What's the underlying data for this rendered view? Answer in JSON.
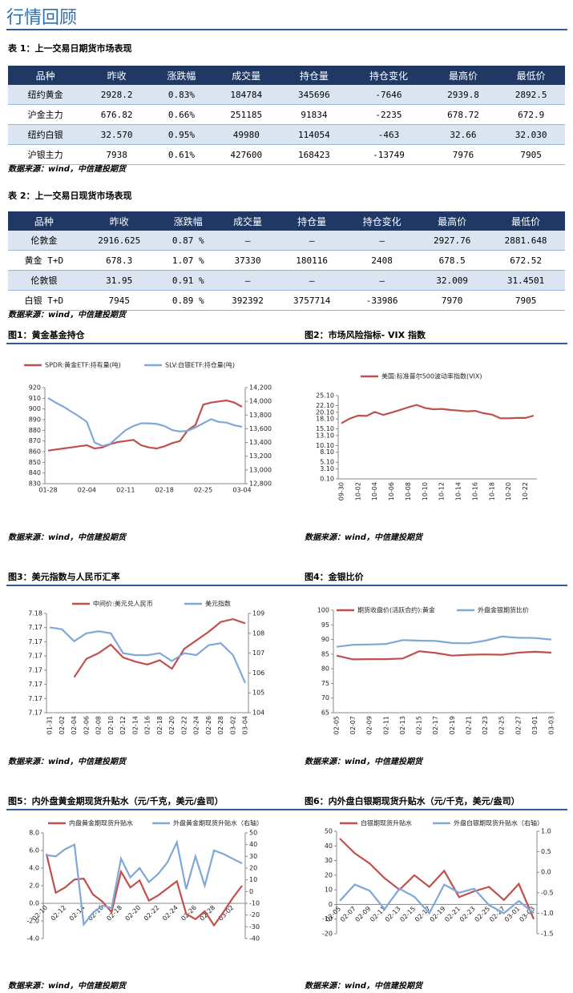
{
  "header": {
    "title": "行情回顾"
  },
  "tables": [
    {
      "caption": "表 1：上一交易日期货市场表现",
      "columns": [
        "品种",
        "昨收",
        "涨跌幅",
        "成交量",
        "持仓量",
        "持仓变化",
        "最高价",
        "最低价"
      ],
      "rows": [
        [
          "纽约黄金",
          "2928.2",
          "0.83%",
          "184784",
          "345696",
          "-7646",
          "2939.8",
          "2892.5"
        ],
        [
          "沪金主力",
          "676.82",
          "0.66%",
          "251185",
          "91834",
          "-2235",
          "678.72",
          "672.9"
        ],
        [
          "纽约白银",
          "32.570",
          "0.95%",
          "49980",
          "114054",
          "-463",
          "32.66",
          "32.030"
        ],
        [
          "沪银主力",
          "7938",
          "0.61%",
          "427600",
          "168423",
          "-13749",
          "7976",
          "7905"
        ]
      ],
      "source": "数据来源：wind，中信建投期货"
    },
    {
      "caption": "表 2：上一交易日现货市场表现",
      "columns": [
        "品种",
        "昨收",
        "涨跌幅",
        "成交量",
        "持仓量",
        "持仓变化",
        "最高价",
        "最低价"
      ],
      "rows": [
        [
          "伦敦金",
          "2916.625",
          "0.87 %",
          "–",
          "–",
          "–",
          "2927.76",
          "2881.648"
        ],
        [
          "黄金 T+D",
          "678.3",
          "1.07 %",
          "37330",
          "180116",
          "2408",
          "678.5",
          "672.52"
        ],
        [
          "伦敦银",
          "31.95",
          "0.91 %",
          "–",
          "–",
          "–",
          "32.009",
          "31.4501"
        ],
        [
          "白银 T+D",
          "7945",
          "0.89 %",
          "392392",
          "3757714",
          "-33986",
          "7970",
          "7905"
        ]
      ],
      "source": "数据来源：wind，中信建投期货"
    }
  ],
  "chart_data": [
    {
      "type": "line",
      "title": "图1：黄金基金持仓",
      "source": "数据来源：wind，中信建投期货",
      "categories": [
        "01-28",
        null,
        null,
        null,
        null,
        "02-04",
        null,
        null,
        null,
        null,
        "02-11",
        null,
        null,
        null,
        null,
        "02-18",
        null,
        null,
        null,
        null,
        "02-25",
        null,
        null,
        null,
        null,
        "03-04"
      ],
      "series": [
        {
          "name": "SPDR:黄金ETF:持有量(吨)",
          "color": "#c0504d",
          "values": [
            861,
            862,
            863,
            864,
            865,
            866,
            863,
            864,
            867,
            869,
            870,
            871,
            866,
            864,
            863,
            865,
            868,
            870,
            880,
            885,
            904,
            906,
            907,
            908,
            906,
            902
          ]
        },
        {
          "name": "SLV:白银ETF:持仓量(吨)",
          "color": "#7fa7d8",
          "axis": "y2",
          "values": [
            14050,
            13980,
            13920,
            13850,
            13780,
            13700,
            13400,
            13350,
            13380,
            13480,
            13580,
            13640,
            13680,
            13680,
            13670,
            13640,
            13580,
            13560,
            13570,
            13620,
            13680,
            13740,
            13700,
            13690,
            13650,
            13630
          ]
        }
      ],
      "ylim": [
        830,
        920
      ],
      "yticks": [
        830,
        840,
        850,
        860,
        870,
        880,
        890,
        900,
        910,
        920
      ],
      "y2lim": [
        12800,
        14200
      ],
      "y2ticks": [
        {
          "value": 12800,
          "label": "12,800"
        },
        {
          "value": 13000,
          "label": "13,000"
        },
        {
          "value": 13200,
          "label": "13,200"
        },
        {
          "value": 13400,
          "label": "13,400"
        },
        {
          "value": 13600,
          "label": "13,600"
        },
        {
          "value": 13800,
          "label": "13,800"
        },
        {
          "value": 14000,
          "label": "14,000"
        },
        {
          "value": 14200,
          "label": "14,200"
        }
      ]
    },
    {
      "type": "line",
      "title": "图2：市场风险指标- VIX 指数",
      "source": "数据来源：wind，中信建投期货",
      "categories": [
        "09-30",
        null,
        "10-02",
        null,
        "10-04",
        null,
        "10-06",
        null,
        "10-08",
        null,
        "10-10",
        null,
        "10-12",
        null,
        "10-14",
        null,
        "10-16",
        null,
        "10-18",
        null,
        "10-20",
        null,
        "10-22",
        null
      ],
      "series": [
        {
          "name": "美国:标准普尔500波动率指数(VIX)",
          "color": "#c0504d",
          "values": [
            16.8,
            18.2,
            19.1,
            19.0,
            20.2,
            19.3,
            20.0,
            20.8,
            21.6,
            22.3,
            21.4,
            21.0,
            21.1,
            20.8,
            20.6,
            20.4,
            20.5,
            19.8,
            19.4,
            18.3,
            18.3,
            18.4,
            18.4,
            19.1
          ]
        }
      ],
      "ylim": [
        0.1,
        25.1
      ],
      "yticks": [
        {
          "value": 0.1,
          "label": "0.10"
        },
        {
          "value": 3.1,
          "label": "3.10"
        },
        {
          "value": 5.1,
          "label": "5.10"
        },
        {
          "value": 8.1,
          "label": "8.10"
        },
        {
          "value": 10.1,
          "label": "10.10"
        },
        {
          "value": 13.1,
          "label": "13.10"
        },
        {
          "value": 15.1,
          "label": "15.10"
        },
        {
          "value": 18.1,
          "label": "18.10"
        },
        {
          "value": 20.1,
          "label": "20.10"
        },
        {
          "value": 22.1,
          "label": "22.10"
        },
        {
          "value": 25.1,
          "label": "25.10"
        }
      ]
    },
    {
      "type": "line",
      "title": "图3：美元指数与人民币汇率",
      "source": "数据来源：wind，中信建投期货",
      "categories": [
        "01-31",
        "02-02",
        "02-04",
        "02-06",
        "02-08",
        "02-10",
        "02-12",
        "02-14",
        "02-16",
        "02-18",
        "02-20",
        "02-22",
        "02-24",
        "02-26",
        "02-28",
        "03-02",
        "03-04"
      ],
      "series": [
        {
          "name": "中间价:美元兑人民币",
          "color": "#c0504d",
          "values": [
            null,
            null,
            7.1705,
            7.1718,
            7.1722,
            7.1728,
            7.1719,
            7.1716,
            7.1714,
            7.1717,
            7.1711,
            7.1725,
            7.1731,
            7.1737,
            7.1744,
            7.1746,
            7.1743
          ]
        },
        {
          "name": "美元指数",
          "color": "#7fa7d8",
          "axis": "y2",
          "values": [
            108.3,
            108.2,
            107.6,
            108.0,
            108.1,
            108.0,
            107.0,
            106.9,
            106.9,
            107.0,
            106.6,
            107.0,
            106.9,
            107.4,
            107.5,
            106.9,
            105.5
          ]
        }
      ],
      "ylim": [
        7.168,
        7.175
      ],
      "yticks": [
        {
          "value": 7.168,
          "label": "7.17"
        },
        {
          "value": 7.169,
          "label": "7.17"
        },
        {
          "value": 7.17,
          "label": "7.17"
        },
        {
          "value": 7.171,
          "label": "7.17"
        },
        {
          "value": 7.172,
          "label": "7.17"
        },
        {
          "value": 7.173,
          "label": "7.17"
        },
        {
          "value": 7.174,
          "label": "7.17"
        },
        {
          "value": 7.175,
          "label": "7.18"
        }
      ],
      "y2lim": [
        104,
        109
      ],
      "y2ticks": [
        104,
        105,
        106,
        107,
        108,
        109
      ]
    },
    {
      "type": "line",
      "title": "图4：金银比价",
      "source": "数据来源：wind，中信建投期货",
      "categories": [
        "02-05",
        "02-07",
        "02-09",
        "02-11",
        "02-13",
        "02-15",
        "02-17",
        "02-19",
        "02-21",
        "02-23",
        "02-25",
        "02-27",
        "03-01",
        "03-03"
      ],
      "series": [
        {
          "name": "期货收盘价(活跃合约):黄金",
          "color": "#c0504d",
          "values": [
            84.5,
            83.2,
            83.3,
            83.3,
            83.5,
            86.0,
            85.4,
            84.5,
            84.8,
            84.9,
            84.8,
            85.5,
            85.8,
            85.5
          ]
        },
        {
          "name": "外盘金银期货比价",
          "color": "#7fa7d8",
          "values": [
            87.5,
            88.2,
            88.3,
            88.5,
            89.8,
            89.6,
            89.5,
            88.8,
            88.7,
            89.6,
            91.0,
            90.6,
            90.5,
            90.0
          ]
        }
      ],
      "ylim": [
        65,
        100
      ],
      "yticks": [
        65,
        70,
        75,
        80,
        85,
        90,
        95,
        100
      ]
    },
    {
      "type": "line",
      "title": "图5：内外盘黄金期现货升贴水（元/千克，美元/盎司）",
      "source": "数据来源：wind，中信建投期货",
      "categories": [
        "02-10",
        null,
        "02-12",
        null,
        "02-14",
        null,
        "02-16",
        null,
        "02-18",
        null,
        "02-20",
        null,
        "02-22",
        null,
        "02-24",
        null,
        "02-26",
        null,
        "02-28",
        null,
        "03-02",
        null
      ],
      "series": [
        {
          "name": "内盘黄金期现货升贴水",
          "color": "#c0504d",
          "values": [
            5.6,
            1.2,
            1.8,
            2.7,
            2.8,
            1.0,
            0.2,
            -1.0,
            3.6,
            1.8,
            2.6,
            0.3,
            0.9,
            1.7,
            2.5,
            -1.2,
            -1.8,
            -0.9,
            -2.5,
            -1.0,
            0.6,
            2.0
          ]
        },
        {
          "name": "外盘黄金期现货升贴水（右轴）",
          "color": "#7fa7d8",
          "axis": "y2",
          "values": [
            31,
            30,
            36,
            40,
            -28,
            -18,
            -12,
            -14,
            28,
            12,
            20,
            8,
            15,
            25,
            42,
            2,
            30,
            5,
            35,
            32,
            28,
            24
          ]
        }
      ],
      "ylim": [
        -4,
        8
      ],
      "yticks": [
        {
          "value": -4,
          "label": "-4.0"
        },
        {
          "value": -2,
          "label": "-2.0"
        },
        {
          "value": 0,
          "label": "0.0"
        },
        {
          "value": 2,
          "label": "2.0"
        },
        {
          "value": 4,
          "label": "4.0"
        },
        {
          "value": 6,
          "label": "6.0"
        },
        {
          "value": 8,
          "label": "8.0"
        }
      ],
      "y2lim": [
        -40,
        50
      ],
      "y2ticks": [
        -40,
        -30,
        -20,
        -10,
        0,
        10,
        20,
        30,
        40,
        50
      ]
    },
    {
      "type": "line",
      "title": "图6：内外盘白银期现货升贴水（元/千克，美元/盎司）",
      "source": "数据来源：wind，中信建投期货",
      "categories": [
        "02-05",
        "02-07",
        "02-09",
        "02-11",
        "02-13",
        "02-15",
        "02-17",
        "02-19",
        "02-21",
        "02-23",
        "02-25",
        "02-27",
        "03-01",
        "03-03"
      ],
      "series": [
        {
          "name": "白银期现货升贴水",
          "color": "#c0504d",
          "values": [
            45,
            35,
            28,
            18,
            10,
            20,
            12,
            23,
            5,
            9,
            12,
            3,
            14,
            -10
          ]
        },
        {
          "name": "外盘白银期现货升贴水（右轴）",
          "color": "#7fa7d8",
          "axis": "y2",
          "values": [
            -0.7,
            -0.3,
            -0.45,
            -0.9,
            -0.4,
            -0.6,
            -1.0,
            -0.3,
            -0.5,
            -0.4,
            -0.8,
            -1.0,
            -0.7,
            -1.0
          ]
        }
      ],
      "ylim": [
        -20,
        50
      ],
      "yticks": [
        -20,
        -10,
        0,
        10,
        20,
        30,
        40,
        50
      ],
      "y2lim": [
        -1.5,
        1
      ],
      "y2ticks": [
        {
          "value": -1.5,
          "label": "-1.5"
        },
        {
          "value": -1,
          "label": "-1.0"
        },
        {
          "value": -0.5,
          "label": "-0.5"
        },
        {
          "value": 0,
          "label": "0.0"
        },
        {
          "value": 0.5,
          "label": "0.5"
        },
        {
          "value": 1,
          "label": "1.0"
        }
      ]
    }
  ]
}
